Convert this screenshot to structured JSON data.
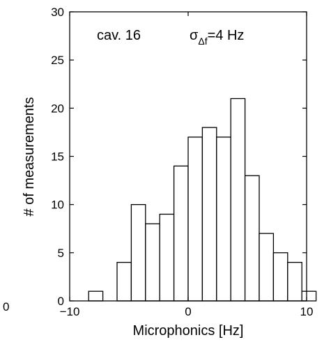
{
  "chart_data": {
    "type": "bar",
    "subtype": "histogram",
    "bin_width": 1.2,
    "bins": [
      {
        "center": -7.8,
        "count": 1
      },
      {
        "center": -6.6,
        "count": 0
      },
      {
        "center": -5.4,
        "count": 4
      },
      {
        "center": -4.2,
        "count": 10
      },
      {
        "center": -3.0,
        "count": 8
      },
      {
        "center": -1.8,
        "count": 9
      },
      {
        "center": -0.6,
        "count": 14
      },
      {
        "center": 0.6,
        "count": 17
      },
      {
        "center": 1.8,
        "count": 18
      },
      {
        "center": 3.0,
        "count": 17
      },
      {
        "center": 4.2,
        "count": 21
      },
      {
        "center": 5.4,
        "count": 13
      },
      {
        "center": 6.6,
        "count": 7
      },
      {
        "center": 7.8,
        "count": 5
      },
      {
        "center": 9.0,
        "count": 4
      },
      {
        "center": 10.2,
        "count": 1
      }
    ],
    "xlabel": "Microphonics [Hz]",
    "ylabel": "# of measurements",
    "xlim": [
      -10,
      10
    ],
    "ylim": [
      0,
      30
    ],
    "xticks": [
      -10,
      0,
      10
    ],
    "xtick_labels": [
      "−10",
      "0",
      "10"
    ],
    "yticks": [
      0,
      5,
      10,
      15,
      20,
      25,
      30
    ],
    "ytick_labels": [
      "0",
      "5",
      "10",
      "15",
      "20",
      "25",
      "30"
    ],
    "left_margin_label": "0",
    "annotation": {
      "cavity": "cav. 16",
      "sigma_symbol": "σ",
      "sigma_subscript": "Δf",
      "sigma_value": "=4 Hz"
    },
    "grid": false,
    "legend": "none",
    "bar_fill": "#ffffff",
    "bar_stroke": "#000000"
  }
}
